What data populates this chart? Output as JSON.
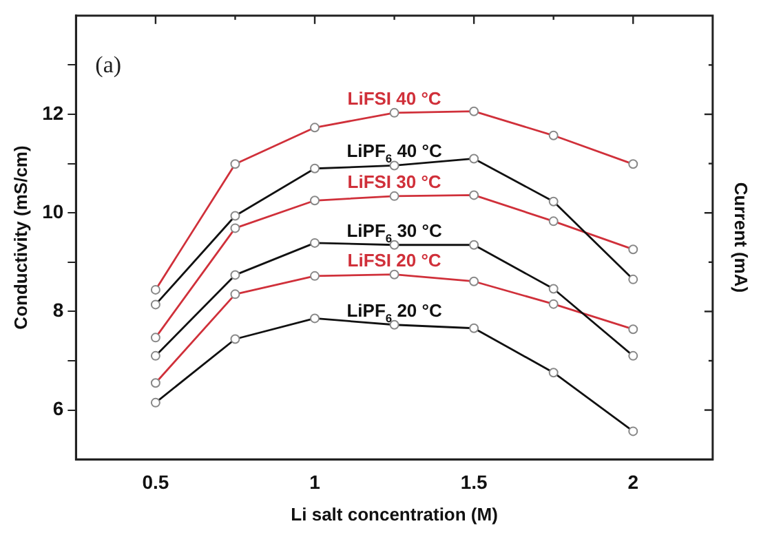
{
  "chart_data": {
    "type": "line",
    "xlabel": "Li salt concentration (M)",
    "ylabel": "Conductivity (mS/cm)",
    "y2label": "Current (mA)",
    "annotations": [
      "(a)"
    ],
    "x": [
      0.5,
      0.75,
      1.0,
      1.25,
      1.5,
      1.75,
      2.0
    ],
    "xlim": [
      0.25,
      2.25
    ],
    "xticks": [
      0.5,
      {
        "value": 0.75,
        "label": null
      },
      1,
      {
        "value": 1.25,
        "label": null
      },
      1.5,
      {
        "value": 1.75,
        "label": null
      },
      2
    ],
    "ylim": [
      5,
      14
    ],
    "yticks": [
      6,
      {
        "value": 7,
        "label": null
      },
      8,
      {
        "value": 9,
        "label": null
      },
      10,
      {
        "value": 11,
        "label": null
      },
      12,
      {
        "value": 13,
        "label": null
      }
    ],
    "grid": false,
    "legend": false,
    "marker": "circle",
    "line_style": "solid",
    "series": [
      {
        "name": "LiFSI 40 °C",
        "color": "#d0303a",
        "values": [
          8.44,
          10.99,
          11.73,
          12.03,
          12.06,
          11.57,
          10.99
        ]
      },
      {
        "name": "LiPF$_{6}$ 40 °C",
        "color": "#111111",
        "values": [
          8.14,
          9.94,
          10.9,
          10.96,
          11.1,
          10.23,
          8.65
        ]
      },
      {
        "name": "LiFSI 30 °C",
        "color": "#d0303a",
        "values": [
          7.47,
          9.69,
          10.25,
          10.34,
          10.36,
          9.83,
          9.26
        ]
      },
      {
        "name": "LiPF$_{6}$ 30 °C",
        "color": "#111111",
        "values": [
          7.1,
          8.74,
          9.39,
          9.35,
          9.35,
          8.46,
          7.1
        ]
      },
      {
        "name": "LiFSI 20 °C",
        "color": "#d0303a",
        "values": [
          6.55,
          8.35,
          8.72,
          8.75,
          8.61,
          8.15,
          7.64
        ]
      },
      {
        "name": "LiPF$_{6}$ 20 °C",
        "color": "#111111",
        "values": [
          6.15,
          7.44,
          7.86,
          7.73,
          7.66,
          6.76,
          5.57
        ]
      }
    ]
  }
}
